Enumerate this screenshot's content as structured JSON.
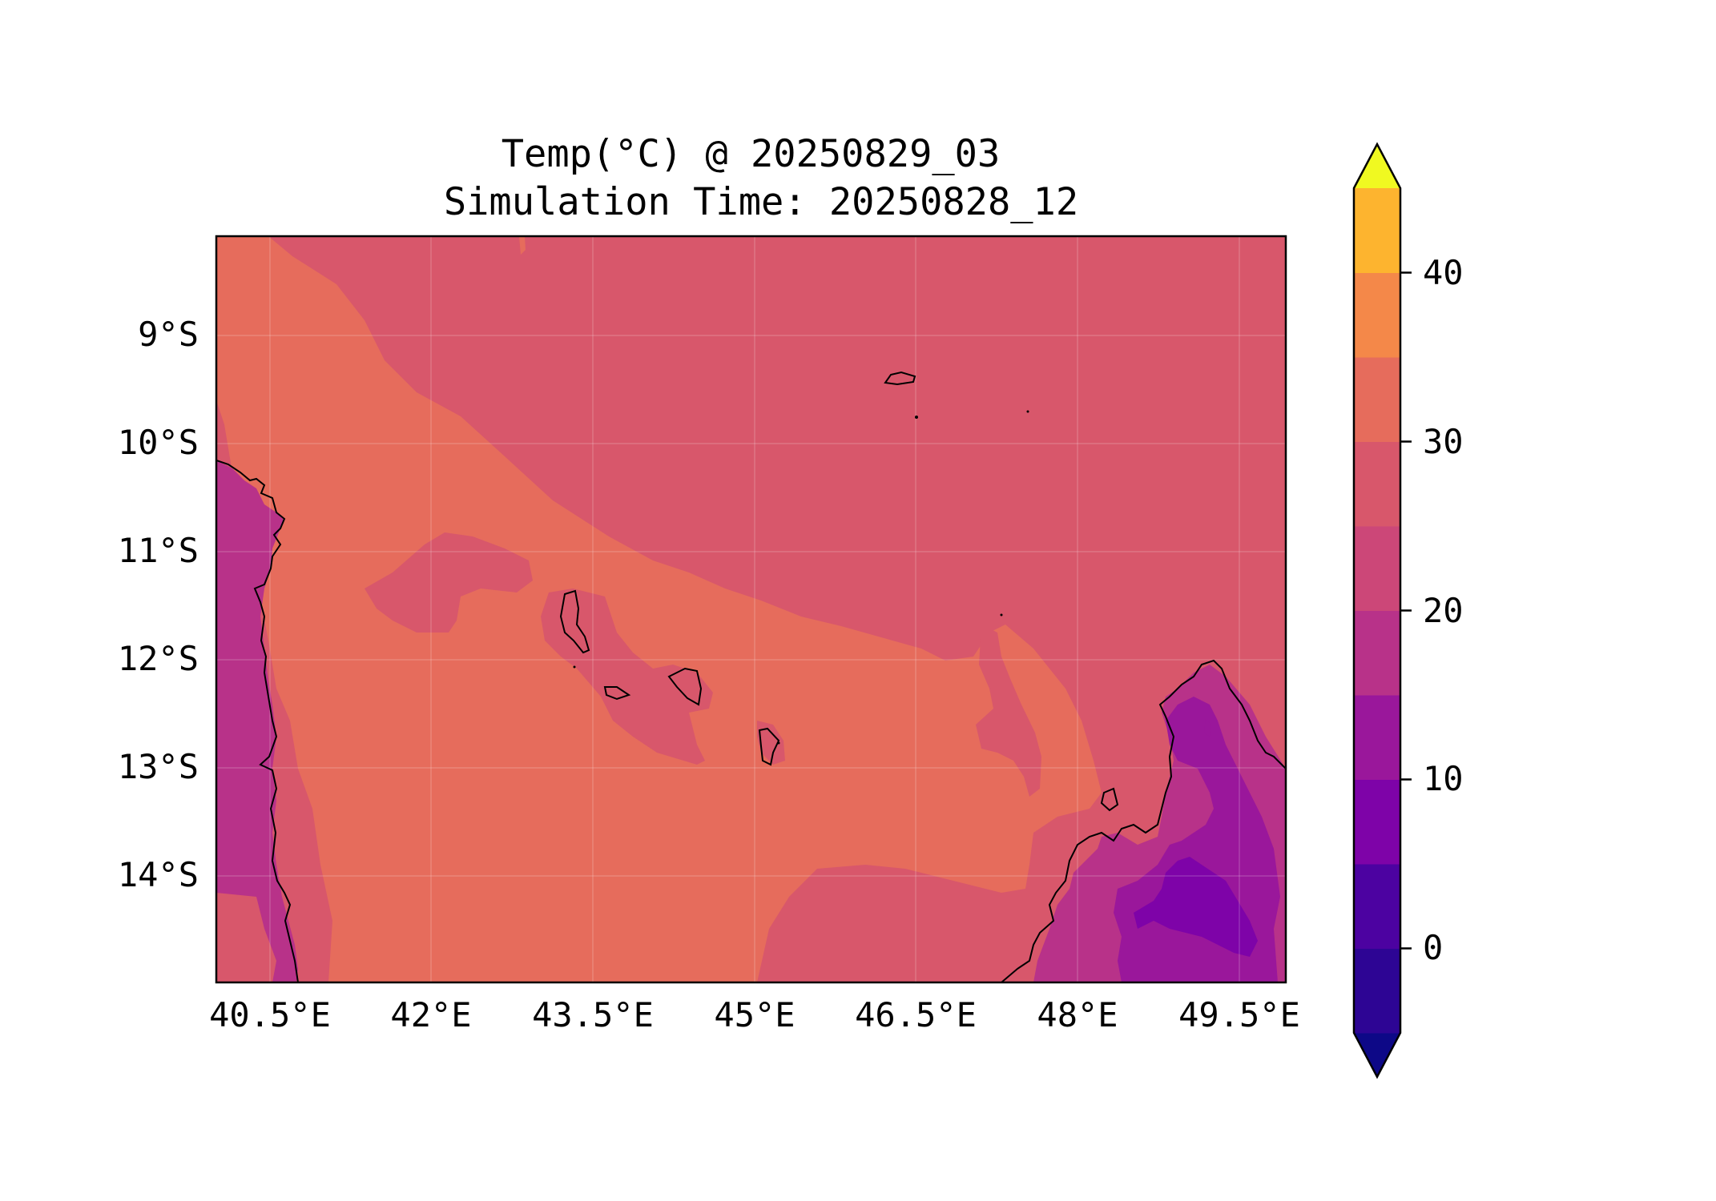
{
  "title": {
    "line1": "Temp(°C) @ 20250829_03",
    "line2": "Simulation Time: 20250828_12"
  },
  "map": {
    "lon_ticks": [
      "40.5°E",
      "42°E",
      "43.5°E",
      "45°E",
      "46.5°E",
      "48°E",
      "49.5°E"
    ],
    "lat_ticks": [
      "9°S",
      "10°S",
      "11°S",
      "12°S",
      "13°S",
      "14°S"
    ],
    "lon_range": [
      40.0,
      49.9
    ],
    "lat_range": [
      -14.96,
      -8.06
    ],
    "gridlines": true
  },
  "colorbar": {
    "ticks": [
      "0",
      "10",
      "20",
      "30",
      "40"
    ],
    "levels": [
      -5,
      0,
      5,
      10,
      15,
      20,
      25,
      30,
      35,
      40,
      45
    ],
    "extend": "both",
    "colors": [
      "#0d0887",
      "#2d0594",
      "#4c02a1",
      "#7e03a8",
      "#9a179b",
      "#b83289",
      "#cc4778",
      "#d8576b",
      "#e66c5c",
      "#f48849",
      "#fdb42f",
      "#f0f921"
    ],
    "sea_color": "#d8576b",
    "warm_band_color": "#e66c5c",
    "land_color": "#b83289",
    "cool_land_color": "#9a179b",
    "coldest_land_color": "#7e03a8"
  }
}
